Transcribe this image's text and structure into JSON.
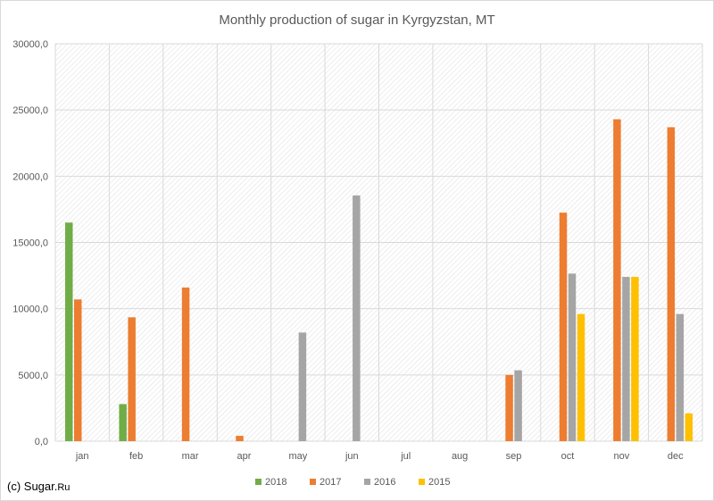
{
  "chart_data": {
    "type": "bar",
    "title": "Monthly production of sugar in Kyrgyzstan, MT",
    "categories": [
      "jan",
      "feb",
      "mar",
      "apr",
      "may",
      "jun",
      "jul",
      "aug",
      "sep",
      "oct",
      "nov",
      "dec"
    ],
    "series": [
      {
        "name": "2018",
        "color": "#70ad47",
        "values": [
          16500,
          2800,
          null,
          null,
          null,
          null,
          null,
          null,
          null,
          null,
          null,
          null
        ]
      },
      {
        "name": "2017",
        "color": "#ed7d31",
        "values": [
          10700,
          9350,
          11600,
          400,
          null,
          null,
          null,
          null,
          5000,
          17250,
          24300,
          23700
        ]
      },
      {
        "name": "2016",
        "color": "#a5a5a5",
        "values": [
          null,
          null,
          null,
          null,
          8200,
          18550,
          null,
          null,
          5350,
          12650,
          12400,
          9600
        ]
      },
      {
        "name": "2015",
        "color": "#ffc000",
        "values": [
          null,
          null,
          null,
          null,
          null,
          null,
          null,
          null,
          null,
          9600,
          12400,
          2100
        ]
      }
    ],
    "ylim": [
      0,
      30000
    ],
    "yticks": [
      0,
      5000,
      10000,
      15000,
      20000,
      25000,
      30000
    ],
    "ytick_labels": [
      "0,0",
      "5000,0",
      "10000,0",
      "15000,0",
      "20000,0",
      "25000,0",
      "30000,0"
    ],
    "grid": true,
    "legend": "bottom"
  },
  "credit": {
    "prefix": "(c) Sugar.",
    "suffix": "Ru"
  }
}
